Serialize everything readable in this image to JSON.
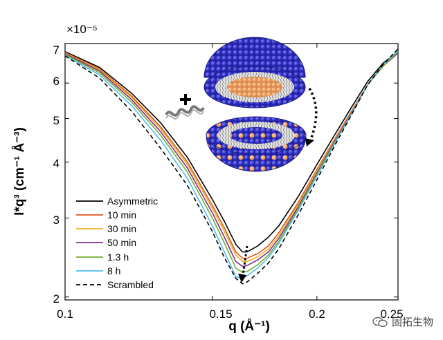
{
  "chart_data": {
    "type": "line",
    "xlabel": "q (Å⁻¹)",
    "ylabel": "I*q³ (cm⁻¹ Å⁻³)",
    "y_exponent_label": "×10⁻⁵",
    "x_ticks": [
      "0.1",
      "0.15",
      "0.2",
      "0.25"
    ],
    "y_ticks": [
      "2",
      "3",
      "4",
      "5",
      "6",
      "7"
    ],
    "xlim": [
      0.1,
      0.25
    ],
    "ylim": [
      1.97,
      7.35
    ],
    "y_scale": "log",
    "legend_position": "bottom-left",
    "series": [
      {
        "name": "Asymmetric",
        "color": "#000000",
        "dash": false,
        "x": [
          0.1,
          0.11,
          0.12,
          0.13,
          0.14,
          0.15,
          0.155,
          0.16,
          0.163,
          0.165,
          0.17,
          0.175,
          0.18,
          0.19,
          0.2,
          0.21,
          0.22,
          0.23,
          0.24,
          0.25
        ],
        "y": [
          7.05,
          6.5,
          5.7,
          4.9,
          4.1,
          3.3,
          2.95,
          2.62,
          2.52,
          2.52,
          2.6,
          2.72,
          2.88,
          3.35,
          3.95,
          4.6,
          5.3,
          6.05,
          6.65,
          7.05
        ]
      },
      {
        "name": "10 min",
        "color": "#d9541e",
        "dash": false,
        "x": [
          0.1,
          0.11,
          0.12,
          0.13,
          0.14,
          0.15,
          0.155,
          0.16,
          0.163,
          0.165,
          0.17,
          0.175,
          0.18,
          0.19,
          0.2,
          0.21,
          0.22,
          0.23,
          0.24,
          0.25
        ],
        "y": [
          7.02,
          6.45,
          5.62,
          4.8,
          4.0,
          3.2,
          2.85,
          2.52,
          2.44,
          2.44,
          2.5,
          2.6,
          2.78,
          3.25,
          3.85,
          4.5,
          5.2,
          5.95,
          6.55,
          7.0
        ]
      },
      {
        "name": "30 min",
        "color": "#edb120",
        "dash": false,
        "x": [
          0.1,
          0.11,
          0.12,
          0.13,
          0.14,
          0.15,
          0.155,
          0.16,
          0.163,
          0.165,
          0.17,
          0.175,
          0.18,
          0.19,
          0.2,
          0.21,
          0.22,
          0.23,
          0.24,
          0.25
        ],
        "y": [
          7.0,
          6.42,
          5.58,
          4.75,
          3.95,
          3.15,
          2.8,
          2.48,
          2.4,
          2.4,
          2.46,
          2.56,
          2.74,
          3.22,
          3.82,
          4.48,
          5.18,
          5.95,
          6.55,
          7.0
        ]
      },
      {
        "name": "50 min",
        "color": "#7e2f8e",
        "dash": false,
        "x": [
          0.1,
          0.11,
          0.12,
          0.13,
          0.14,
          0.15,
          0.155,
          0.16,
          0.163,
          0.165,
          0.17,
          0.175,
          0.18,
          0.19,
          0.2,
          0.21,
          0.22,
          0.23,
          0.24,
          0.25
        ],
        "y": [
          6.98,
          6.38,
          5.52,
          4.68,
          3.88,
          3.08,
          2.72,
          2.4,
          2.34,
          2.35,
          2.42,
          2.52,
          2.7,
          3.18,
          3.78,
          4.45,
          5.15,
          5.95,
          6.55,
          7.0
        ]
      },
      {
        "name": "1.3 h",
        "color": "#77ac30",
        "dash": false,
        "x": [
          0.1,
          0.11,
          0.12,
          0.13,
          0.14,
          0.15,
          0.155,
          0.16,
          0.163,
          0.165,
          0.17,
          0.175,
          0.18,
          0.19,
          0.2,
          0.21,
          0.22,
          0.23,
          0.24,
          0.25
        ],
        "y": [
          6.95,
          6.32,
          5.45,
          4.6,
          3.8,
          3.0,
          2.64,
          2.32,
          2.27,
          2.28,
          2.36,
          2.48,
          2.66,
          3.15,
          3.75,
          4.42,
          5.12,
          5.95,
          6.55,
          7.05
        ]
      },
      {
        "name": "8 h",
        "color": "#4dbeee",
        "dash": false,
        "x": [
          0.1,
          0.11,
          0.12,
          0.13,
          0.14,
          0.15,
          0.155,
          0.16,
          0.163,
          0.165,
          0.17,
          0.175,
          0.18,
          0.19,
          0.2,
          0.21,
          0.22,
          0.23,
          0.24,
          0.25
        ],
        "y": [
          6.92,
          6.25,
          5.35,
          4.48,
          3.68,
          2.88,
          2.52,
          2.22,
          2.2,
          2.23,
          2.32,
          2.45,
          2.63,
          3.12,
          3.72,
          4.4,
          5.12,
          5.95,
          6.6,
          7.1
        ]
      },
      {
        "name": "Scrambled",
        "color": "#000000",
        "dash": true,
        "x": [
          0.1,
          0.11,
          0.12,
          0.13,
          0.14,
          0.15,
          0.155,
          0.16,
          0.163,
          0.165,
          0.17,
          0.175,
          0.18,
          0.19,
          0.2,
          0.21,
          0.22,
          0.23,
          0.24,
          0.25
        ],
        "y": [
          6.9,
          6.15,
          5.2,
          4.3,
          3.55,
          2.8,
          2.45,
          2.2,
          2.14,
          2.16,
          2.26,
          2.38,
          2.56,
          3.05,
          3.65,
          4.35,
          5.1,
          5.95,
          6.6,
          7.15
        ]
      }
    ]
  },
  "watermark": {
    "text": "固拓生物",
    "icon": "wechat-icon"
  }
}
